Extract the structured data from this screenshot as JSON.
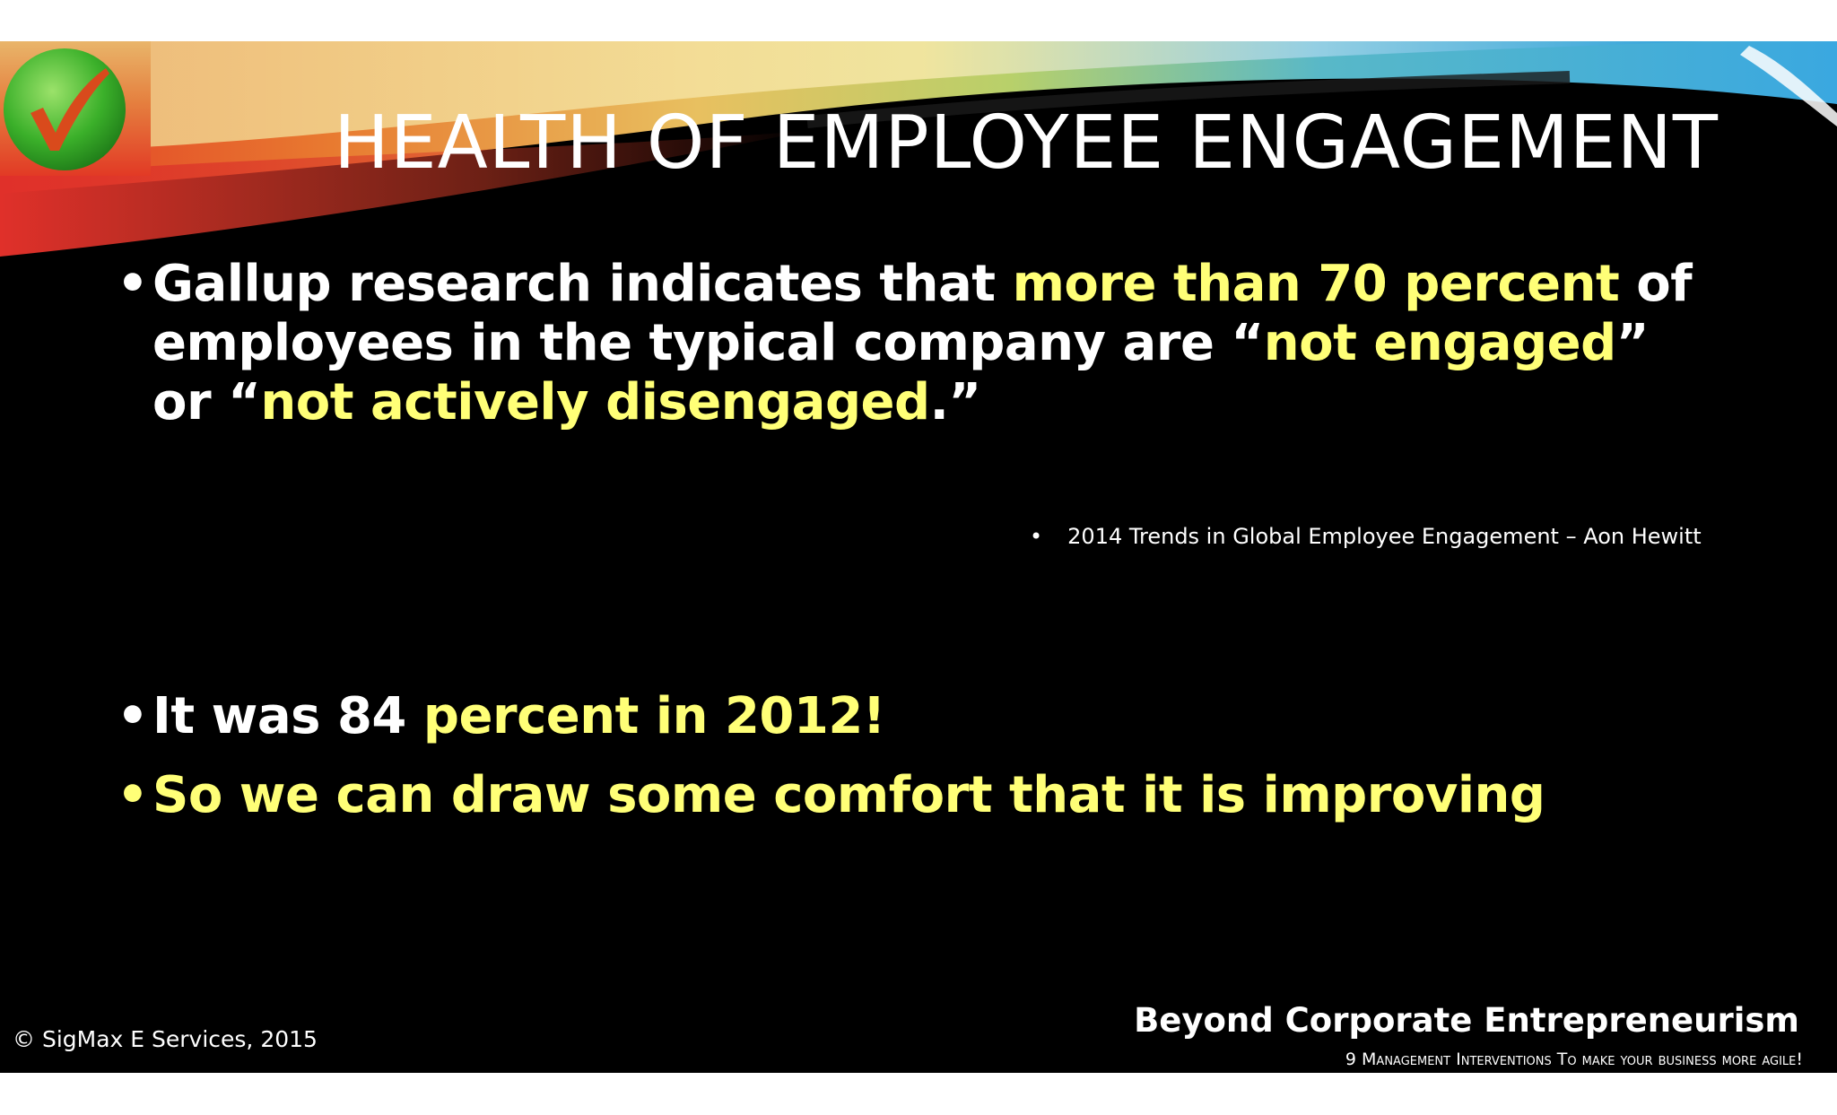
{
  "slide": {
    "title": "HEALTH OF EMPLOYEE ENGAGEMENT",
    "bullet1": {
      "seg1": "Gallup research indicates that ",
      "seg2": "more than 70 percent",
      "seg3": " of employees in the typical company are “",
      "seg4": "not engaged",
      "seg5": "” or “",
      "seg6": "not actively disengaged",
      "seg7": ".”"
    },
    "citation": "2014 Trends in Global Employee Engagement – Aon Hewitt",
    "bullet2": {
      "seg1": "It was 84 ",
      "seg2": "percent in 2012!"
    },
    "bullet3": "So we can draw some comfort that it is improving",
    "copyright": "© SigMax E Services, 2015",
    "footer": {
      "brand": "Beyond Corporate Entrepreneurism",
      "tagline": "9 Management Interventions To make your business more agile!"
    }
  },
  "icons": {
    "logo": "green-check-icon"
  },
  "colors": {
    "background": "#000000",
    "text": "#ffffff",
    "highlight": "#ffff77",
    "check_green": "#3bb02a",
    "check_mark": "#d94a1c"
  }
}
